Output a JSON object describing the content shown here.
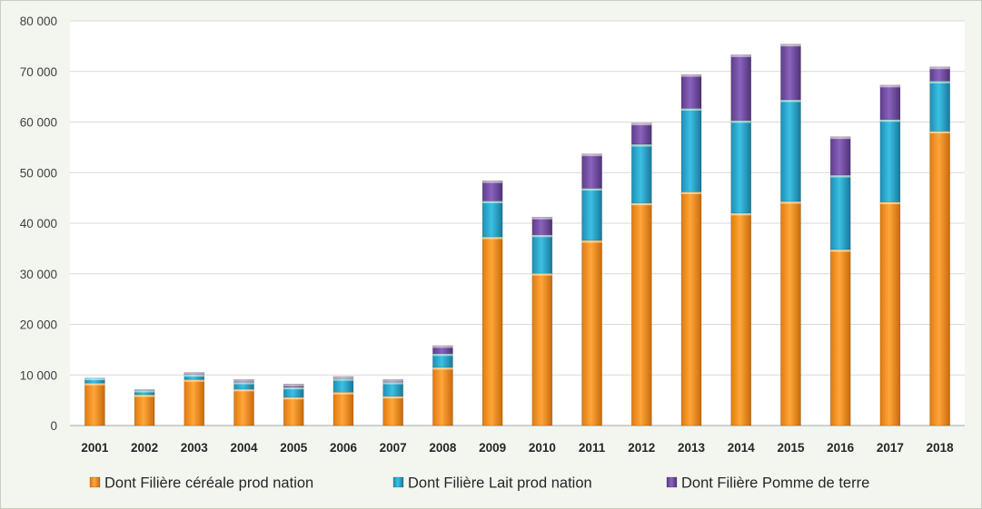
{
  "chart_data": {
    "type": "bar",
    "stacked": true,
    "categories": [
      "2001",
      "2002",
      "2003",
      "2004",
      "2005",
      "2006",
      "2007",
      "2008",
      "2009",
      "2010",
      "2011",
      "2012",
      "2013",
      "2014",
      "2015",
      "2016",
      "2017",
      "2018"
    ],
    "series": [
      {
        "name": "Dont Filière céréale prod nation",
        "color": "#f5901e",
        "values": [
          8400,
          6100,
          9100,
          7200,
          5600,
          6600,
          5800,
          11500,
          37300,
          30100,
          36600,
          44000,
          46200,
          42000,
          44300,
          34800,
          44200,
          58200
        ]
      },
      {
        "name": "Dont Filière Lait prod nation",
        "color": "#25a4c8",
        "values": [
          1000,
          900,
          1000,
          1400,
          2000,
          2700,
          2800,
          2700,
          7100,
          7600,
          10300,
          11600,
          16500,
          18300,
          20100,
          14700,
          16300,
          9900
        ]
      },
      {
        "name": "Dont Filière Pomme de terre",
        "color": "#6e4a9e",
        "values": [
          0,
          100,
          400,
          500,
          600,
          400,
          500,
          1600,
          4000,
          3500,
          6800,
          4200,
          6700,
          13000,
          11000,
          7600,
          6800,
          2800
        ]
      }
    ],
    "yticks": [
      "0",
      "10 000",
      "20 000",
      "30 000",
      "40 000",
      "50 000",
      "60 000",
      "70 000",
      "80 000"
    ],
    "ylim": [
      0,
      80000
    ],
    "grid": true,
    "legend": "bottom"
  }
}
